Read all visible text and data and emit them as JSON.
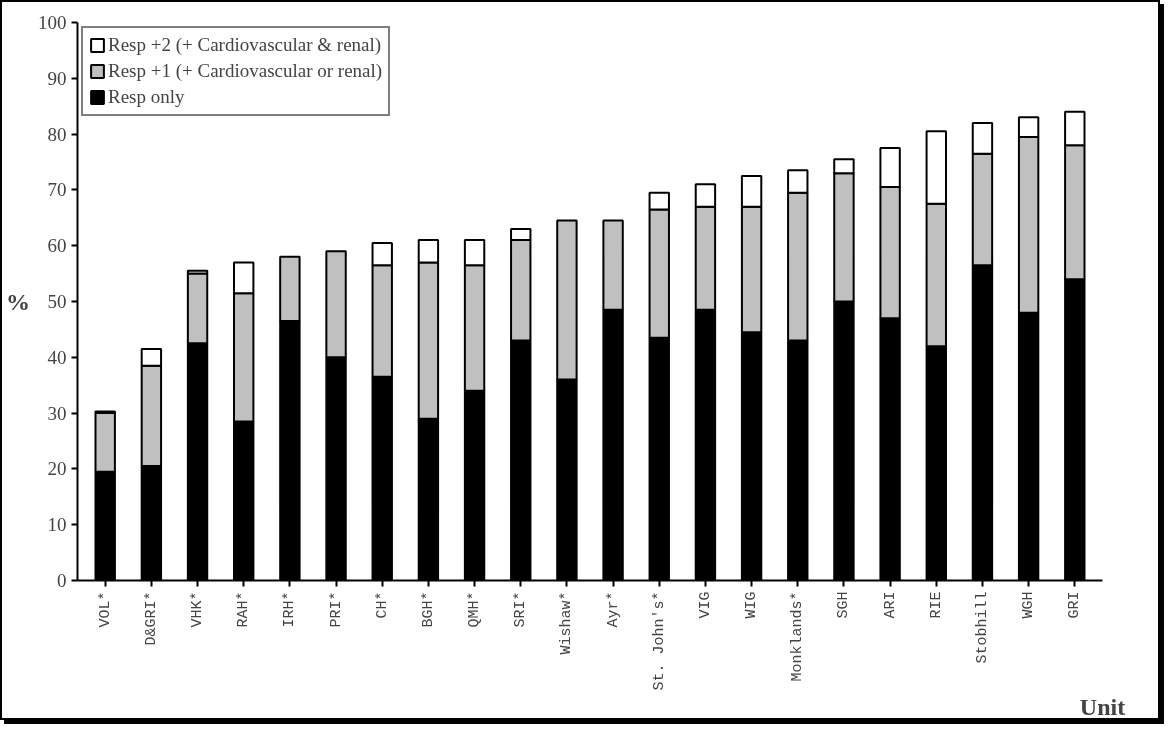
{
  "chart_data": {
    "type": "bar",
    "stacked": true,
    "xlabel": "Unit",
    "ylabel": "%",
    "categories": [
      "VOL*",
      "D&GRI*",
      "VHK*",
      "RAH*",
      "IRH*",
      "PRI*",
      "CH*",
      "BGH*",
      "QMH*",
      "SRI*",
      "Wishaw*",
      "Ayr*",
      "St. John's*",
      "VIG",
      "WIG",
      "Monklands*",
      "SGH",
      "ARI",
      "RIE",
      "Stobhill",
      "WGH",
      "GRI"
    ],
    "series": [
      {
        "name": "Resp only",
        "color": "#000000",
        "values": [
          19.5,
          20.5,
          42.5,
          28.5,
          46.5,
          40,
          36.5,
          29,
          34,
          43,
          36,
          48.5,
          43.5,
          48.5,
          44.5,
          43,
          50,
          47,
          42,
          56.5,
          48,
          54
        ]
      },
      {
        "name": "Resp +1 (+ Cardiovascular or renal)",
        "color": "#c0c0c0",
        "values": [
          10.5,
          18,
          12.5,
          23,
          11.5,
          19,
          20,
          28,
          22.5,
          18,
          28.5,
          16,
          23,
          18.5,
          22.5,
          26.5,
          23,
          23.5,
          25.5,
          20,
          31.5,
          24
        ]
      },
      {
        "name": "Resp +2 (+ Cardiovascular & renal)",
        "color": "#ffffff",
        "values": [
          0.3,
          3,
          0.5,
          5.5,
          null,
          null,
          4,
          4,
          4.5,
          2,
          null,
          null,
          3,
          4,
          5.5,
          4,
          2.5,
          7,
          13,
          5.5,
          3.5,
          6
        ]
      }
    ],
    "ylim": [
      0,
      100
    ],
    "yticks": [
      0,
      10,
      20,
      30,
      40,
      50,
      60,
      70,
      80,
      90,
      100
    ],
    "grid": false,
    "legend": "top left"
  }
}
